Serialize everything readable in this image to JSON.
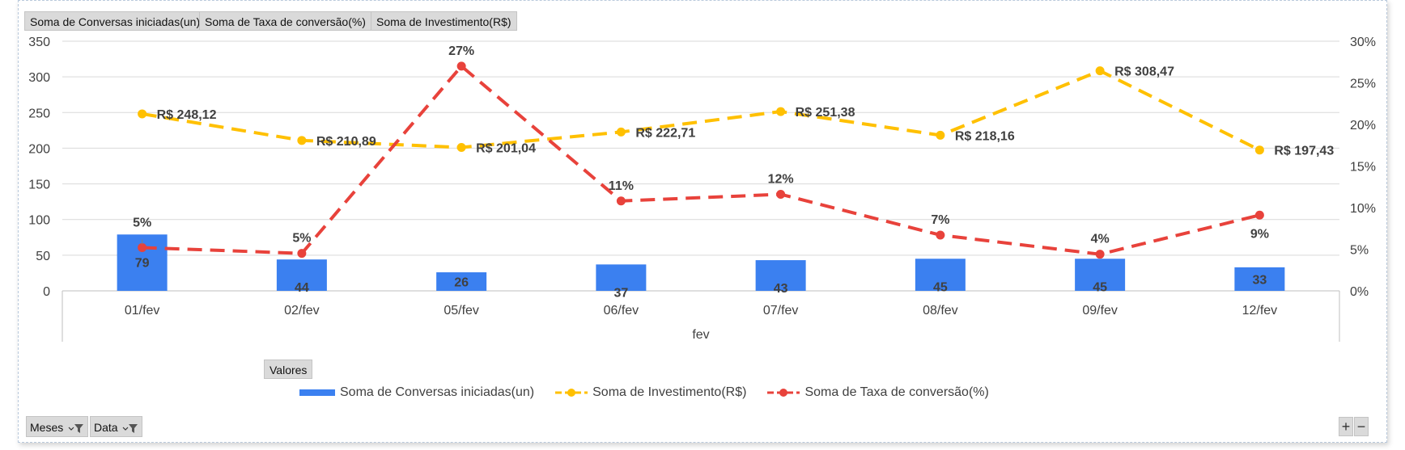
{
  "field_tabs": [
    "Soma de Conversas iniciadas(un)",
    "Soma de Taxa de conversão(%)",
    "Soma de Investimento(R$)"
  ],
  "legend_title": "Valores",
  "filters": [
    {
      "label": "Meses"
    },
    {
      "label": "Data"
    }
  ],
  "zoom": {
    "plus": "+",
    "minus": "−"
  },
  "colors": {
    "bars": "#3b80f0",
    "investimento": "#ffc000",
    "taxa": "#e8423b",
    "grid": "#d9d9d9",
    "text": "#404040"
  },
  "chart_data": {
    "type": "bar",
    "categories": [
      "01/fev",
      "02/fev",
      "05/fev",
      "06/fev",
      "07/fev",
      "08/fev",
      "09/fev",
      "12/fev"
    ],
    "xlabel": "fev",
    "ylim": [
      0,
      350
    ],
    "yticks": [
      0,
      50,
      100,
      150,
      200,
      250,
      300,
      350
    ],
    "y2lim": [
      0,
      30
    ],
    "y2ticks": [
      "0%",
      "5%",
      "10%",
      "15%",
      "20%",
      "25%",
      "30%"
    ],
    "series": [
      {
        "name": "Soma de Conversas iniciadas(un)",
        "type": "bar",
        "axis": "left",
        "values": [
          79,
          44,
          26,
          37,
          43,
          45,
          45,
          33
        ],
        "labels": [
          "79",
          "44",
          "26",
          "37",
          "43",
          "45",
          "45",
          "33"
        ]
      },
      {
        "name": "Soma de Investimento(R$)",
        "type": "line",
        "style": "dashed",
        "axis": "left",
        "values": [
          248.12,
          210.89,
          201.04,
          222.71,
          251.38,
          218.16,
          308.47,
          197.43
        ],
        "labels": [
          "R$ 248,12",
          "R$ 210,89",
          "R$ 201,04",
          "R$ 222,71",
          "R$ 251,38",
          "R$ 218,16",
          "R$ 308,47",
          "R$ 197,43"
        ]
      },
      {
        "name": "Soma de Taxa de conversão(%)",
        "type": "line",
        "style": "dashed",
        "axis": "right",
        "values": [
          5.2,
          4.5,
          27.0,
          10.8,
          11.6,
          6.7,
          4.4,
          9.1
        ],
        "labels": [
          "5%",
          "5%",
          "27%",
          "11%",
          "12%",
          "7%",
          "4%",
          "9%"
        ]
      }
    ]
  }
}
